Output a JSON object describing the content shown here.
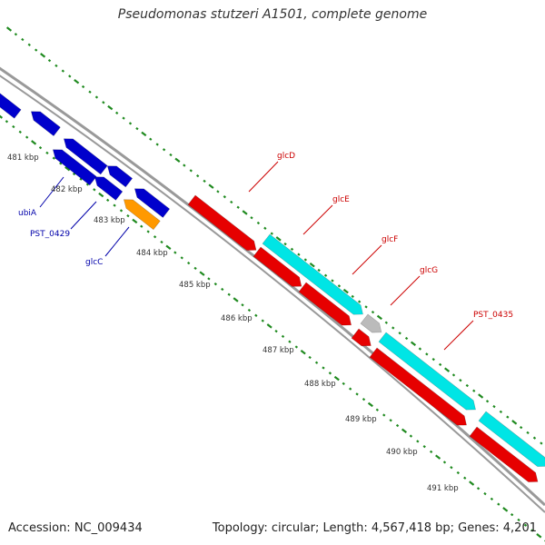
{
  "title": "Pseudomonas stutzeri A1501, complete genome",
  "footer": {
    "accession": "Accession: NC_009434",
    "summary": "Topology: circular; Length: 4,567,418 bp; Genes: 4,201"
  },
  "colors": {
    "forward_strand": "#e60000",
    "reverse_strand": "#0000cc",
    "cyan_feature": "#00e5e5",
    "orange_feature": "#ff9900",
    "grey_feature": "#bbbbbb",
    "backbone": "#999999",
    "tick": "#1f8a1f",
    "forward_label": "#cc0000",
    "reverse_label": "#0000aa"
  },
  "ruler_labels": [
    "481 kbp",
    "482 kbp",
    "483 kbp",
    "484 kbp",
    "485 kbp",
    "486 kbp",
    "487 kbp",
    "488 kbp",
    "489 kbp",
    "490 kbp",
    "491 kbp"
  ],
  "gene_labels": [
    {
      "name": "glcD",
      "strand": "forward"
    },
    {
      "name": "glcE",
      "strand": "forward"
    },
    {
      "name": "glcF",
      "strand": "forward"
    },
    {
      "name": "glcG",
      "strand": "forward"
    },
    {
      "name": "PST_0435",
      "strand": "forward"
    },
    {
      "name": "ubiA",
      "strand": "reverse"
    },
    {
      "name": "PST_0429",
      "strand": "reverse"
    },
    {
      "name": "glcC",
      "strand": "reverse"
    }
  ]
}
